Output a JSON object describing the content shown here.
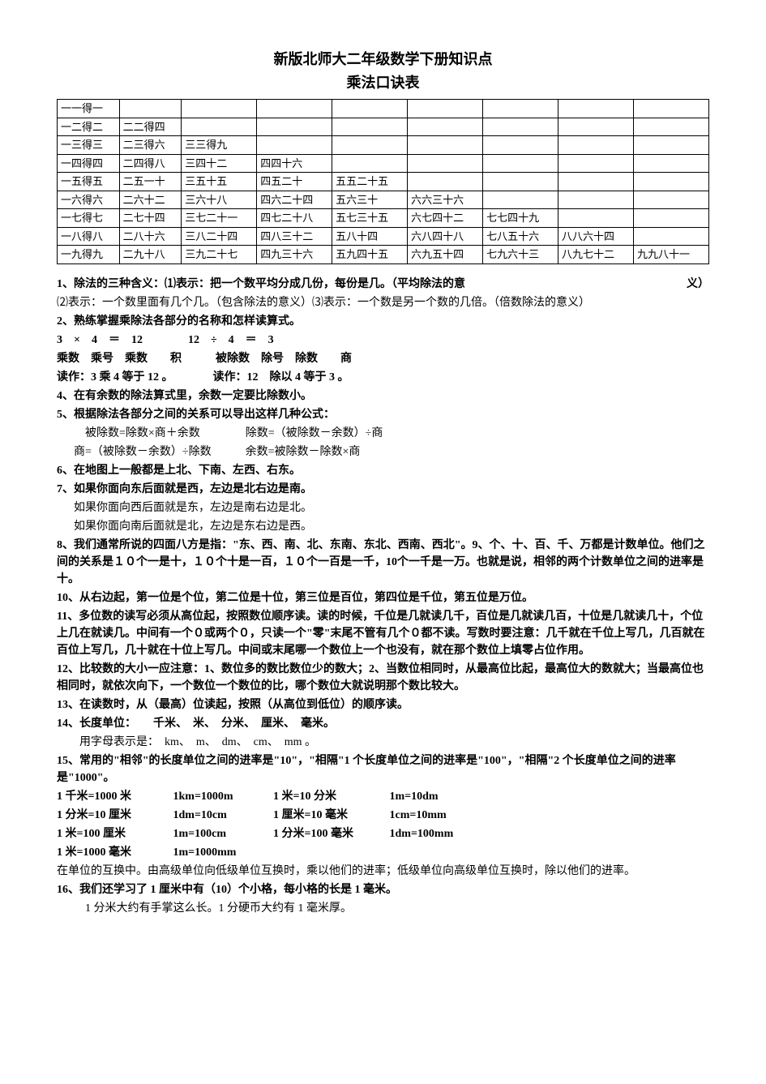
{
  "title": "新版北师大二年级数学下册知识点",
  "subtitle": "乘法口诀表",
  "mult_table": {
    "cols": 9,
    "cells": [
      [
        "一一得一",
        "",
        "",
        "",
        "",
        "",
        "",
        "",
        ""
      ],
      [
        "一二得二",
        "二二得四",
        "",
        "",
        "",
        "",
        "",
        "",
        ""
      ],
      [
        "一三得三",
        "二三得六",
        "三三得九",
        "",
        "",
        "",
        "",
        "",
        ""
      ],
      [
        "一四得四",
        "二四得八",
        "三四十二",
        "四四十六",
        "",
        "",
        "",
        "",
        ""
      ],
      [
        "一五得五",
        "二五一十",
        "三五十五",
        "四五二十",
        "五五二十五",
        "",
        "",
        "",
        ""
      ],
      [
        "一六得六",
        "二六十二",
        "三六十八",
        "四六二十四",
        "五六三十",
        "六六三十六",
        "",
        "",
        ""
      ],
      [
        "一七得七",
        "二七十四",
        "三七二十一",
        "四七二十八",
        "五七三十五",
        "六七四十二",
        "七七四十九",
        "",
        ""
      ],
      [
        "一八得八",
        "二八十六",
        "三八二十四",
        "四八三十二",
        "五八十四",
        "六八四十八",
        "七八五十六",
        "八八六十四",
        ""
      ],
      [
        "一九得九",
        "二九十八",
        "三九二十七",
        "四九三十六",
        "五九四十五",
        "六九五十四",
        "七九六十三",
        "八九七十二",
        "九九八十一"
      ]
    ]
  },
  "item1_a": "1、除法的三种含义：⑴表示：把一个数平均分成几份，每份是几。（平均除法的意",
  "item1_a_r": "义）",
  "item1_b": "⑵表示：一个数里面有几个几。（包含除法的意义）⑶表示：一个数是另一个数的几倍。（倍数除法的意义）",
  "item2": "2、熟练掌握乘除法各部分的名称和怎样读算式。",
  "eq_line": "3　×　4　＝　12　　　　12　÷　4　＝　3",
  "eq_labels": "乘数　乘号　乘数　　积　　　被除数　除号　除数　　商",
  "eq_read": "读作：3 乘 4 等于 12 。　　　　读作：12　除以 4 等于 3 。",
  "item4": "4、在有余数的除法算式里，余数一定要比除数小。",
  "item5": "5、根据除法各部分之间的关系可以导出这样几种公式：",
  "item5_a": "被除数=除数×商＋余数　　　　除数=（被除数－余数）÷商",
  "item5_b": "商=（被除数－余数）÷除数　　　余数=被除数－除数×商",
  "item6": "6、在地图上一般都是上北、下南、左西、右东。",
  "item7_a": "7、如果你面向东后面就是西，左边是北右边是南。",
  "item7_b": "如果你面向西后面就是东，左边是南右边是北。",
  "item7_c": "如果你面向南后面就是北，左边是东右边是西。",
  "item8": "8、我们通常所说的四面八方是指：\"东、西、南、北、东南、东北、西南、西北\"。9、个、十、百、千、万都是计数单位。他们之间的关系是１０个一是十，１０个十是一百，１０个一百是一千，10个一千是一万。也就是说，相邻的两个计数单位之间的进率是十。",
  "item10": "10、从右边起，第一位是个位，第二位是十位，第三位是百位，第四位是千位，第五位是万位。",
  "item11": "11、多位数的读写必须从高位起，按照数位顺序读。读的时候，千位是几就读几千，百位是几就读几百，十位是几就读几十，个位上几在就读几。中间有一个０或两个０，只读一个\"零\"末尾不管有几个０都不读。写数时要注意：几千就在千位上写几，几百就在百位上写几，几十就在十位上写几。中间或末尾哪一个数位上一个也没有，就在那个数位上填零占位作用。",
  "item12": "12、比较数的大小一应注意：1、数位多的数比数位少的数大；2、当数位相同时，从最高位比起，最高位大的数就大；当最高位也相同时，就依次向下，一个数位一个数位的比，哪个数位大就说明那个数比较大。",
  "item13": "13、在读数时，从（最高）位读起，按照（从高位到低位）的顺序读。",
  "item14_a": "14、长度单位：　　千米、　米、　分米、　厘米、　毫米。",
  "item14_b": "用字母表示是：　km、　m、　dm、　cm、　mm 。",
  "item15": "15、常用的\"相邻\"的长度单位之间的进率是\"10\"，\"相隔\"1 个长度单位之间的进率是\"100\"，\"相隔\"2 个长度单位之间的进率是\"1000\"。",
  "conv": {
    "r1c1": "1 千米=1000 米",
    "r1c2": "1km=1000m",
    "r1c3": "1 米=10 分米",
    "r1c4": "1m=10dm",
    "r2c1": "1 分米=10 厘米",
    "r2c2": "1dm=10cm",
    "r2c3": "1 厘米=10 毫米",
    "r2c4": "1cm=10mm",
    "r3c1": " 1 米=100 厘米",
    "r3c2": "1m=100cm",
    "r3c3": "1 分米=100 毫米",
    "r3c4": "1dm=100mm",
    "r4c1": "1 米=1000 毫米",
    "r4c2": "1m=1000mm"
  },
  "unit_note": "在单位的互换中。由高级单位向低级单位互换时，乘以他们的进率；低级单位向高级单位互换时，除以他们的进率。",
  "item16_a": "16、我们还学习了 1 厘米中有（10）个小格，每小格的长是 1 毫米。",
  "item16_b": "1 分米大约有手掌这么长。1 分硬币大约有 1 毫米厚。"
}
